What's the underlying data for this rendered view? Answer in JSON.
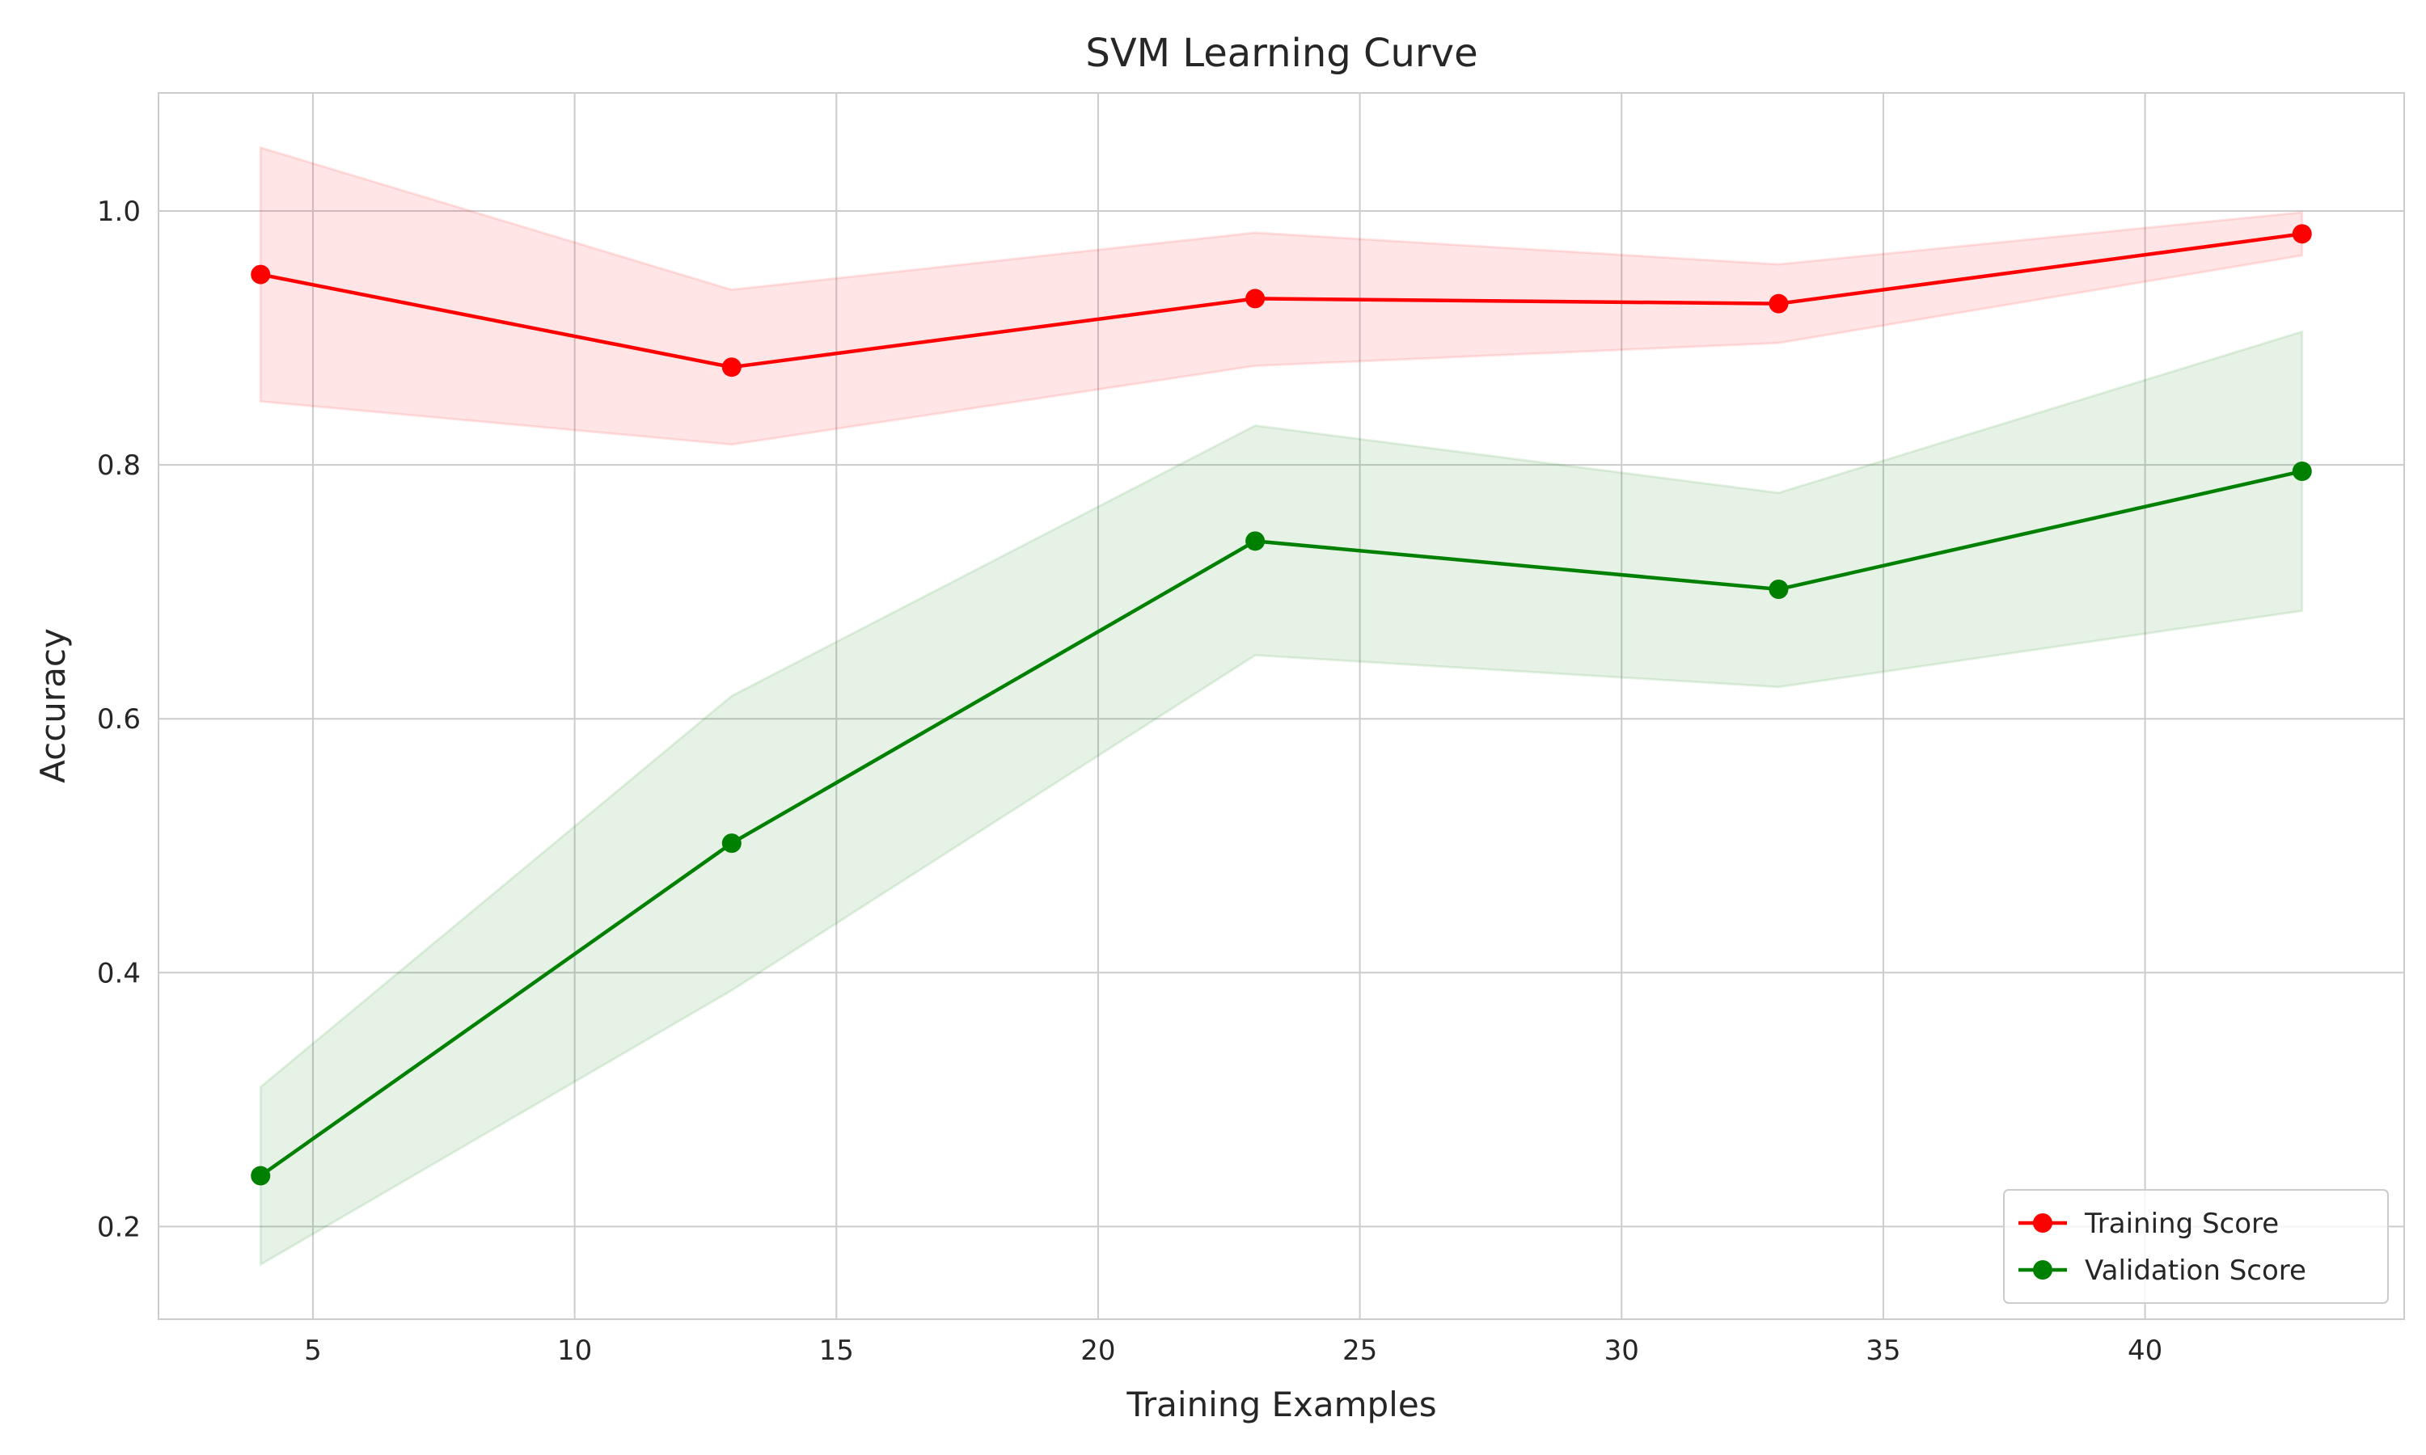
{
  "chart_data": {
    "type": "line",
    "title": "SVM Learning Curve",
    "xlabel": "Training Examples",
    "ylabel": "Accuracy",
    "xlim": [
      2.05,
      44.95
    ],
    "ylim": [
      0.127,
      1.093
    ],
    "x_ticks": [
      5,
      10,
      15,
      20,
      25,
      30,
      35,
      40
    ],
    "x_tick_labels": [
      "5",
      "10",
      "15",
      "20",
      "25",
      "30",
      "35",
      "40"
    ],
    "y_ticks": [
      0.2,
      0.4,
      0.6,
      0.8,
      1.0
    ],
    "y_tick_labels": [
      "0.2",
      "0.4",
      "0.6",
      "0.8",
      "1.0"
    ],
    "grid": true,
    "legend_position": "lower-right",
    "x": [
      4,
      13,
      23,
      33,
      43
    ],
    "series": [
      {
        "name": "Training Score",
        "color": "#ff0000",
        "band_color": "#ff0000",
        "values": [
          0.95,
          0.877,
          0.931,
          0.927,
          0.982
        ],
        "lower": [
          0.85,
          0.816,
          0.878,
          0.896,
          0.965
        ],
        "upper": [
          1.05,
          0.938,
          0.983,
          0.958,
          0.999
        ]
      },
      {
        "name": "Validation Score",
        "color": "#008000",
        "band_color": "#008000",
        "values": [
          0.24,
          0.502,
          0.74,
          0.702,
          0.795
        ],
        "lower": [
          0.17,
          0.386,
          0.65,
          0.625,
          0.685
        ],
        "upper": [
          0.31,
          0.618,
          0.831,
          0.778,
          0.905
        ]
      }
    ]
  }
}
